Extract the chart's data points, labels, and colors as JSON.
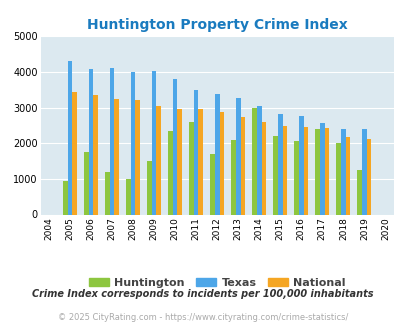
{
  "title": "Huntington Property Crime Index",
  "years": [
    2004,
    2005,
    2006,
    2007,
    2008,
    2009,
    2010,
    2011,
    2012,
    2013,
    2014,
    2015,
    2016,
    2017,
    2018,
    2019,
    2020
  ],
  "huntington": [
    null,
    950,
    1750,
    1200,
    1000,
    1500,
    2350,
    2600,
    1700,
    2100,
    3000,
    2200,
    2050,
    2400,
    2000,
    1250,
    null
  ],
  "texas": [
    null,
    4300,
    4075,
    4100,
    4000,
    4025,
    3800,
    3500,
    3375,
    3275,
    3050,
    2825,
    2775,
    2575,
    2400,
    2400,
    null
  ],
  "national": [
    null,
    3450,
    3350,
    3250,
    3225,
    3050,
    2950,
    2950,
    2875,
    2725,
    2600,
    2475,
    2450,
    2425,
    2175,
    2125,
    null
  ],
  "huntington_color": "#8dc63f",
  "texas_color": "#4da6e8",
  "national_color": "#f5a623",
  "plot_bg_color": "#dce9f0",
  "title_color": "#1a7bbf",
  "ylim": [
    0,
    5000
  ],
  "yticks": [
    0,
    1000,
    2000,
    3000,
    4000,
    5000
  ],
  "footnote1": "Crime Index corresponds to incidents per 100,000 inhabitants",
  "footnote2": "© 2025 CityRating.com - https://www.cityrating.com/crime-statistics/",
  "legend_labels": [
    "Huntington",
    "Texas",
    "National"
  ]
}
